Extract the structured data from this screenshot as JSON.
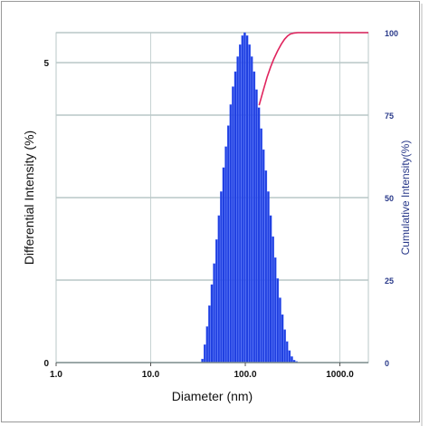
{
  "chart_data": {
    "type": "bar",
    "xlabel": "Diameter (nm)",
    "ylabel": "Differential Intensity (%)",
    "y2label": "Cumulative Intensity(%)",
    "x_scale": "log",
    "xlim": [
      1,
      2000
    ],
    "ylim": [
      0,
      5.5
    ],
    "y2lim": [
      0,
      100
    ],
    "x_tick_labels": [
      "1.0",
      "10.0",
      "100.0",
      "1000.0"
    ],
    "x_tick_values": [
      1,
      10,
      100,
      1000
    ],
    "y_tick_labels": [
      "0",
      "5"
    ],
    "y_tick_values": [
      0,
      5
    ],
    "y2_tick_labels": [
      "0",
      "25",
      "50",
      "75",
      "100"
    ],
    "y2_tick_values": [
      0,
      25,
      50,
      75,
      100
    ],
    "grid": true,
    "series": [
      {
        "kind": "bar",
        "axis": "left",
        "color": "#1f3fe0",
        "x": [
          35.3,
          37.4,
          39.6,
          41.9,
          44.4,
          47.0,
          49.8,
          52.7,
          55.8,
          59.1,
          62.6,
          66.3,
          70.2,
          74.4,
          78.8,
          83.4,
          88.3,
          93.5,
          99.0,
          104.9,
          111.1,
          117.6,
          124.6,
          131.9,
          139.7,
          147.9,
          156.6,
          165.9,
          175.7,
          186.0,
          197.0,
          208.6,
          220.9,
          233.9,
          247.7,
          262.3,
          277.8,
          294.2,
          311.5,
          329.9,
          349.3
        ],
        "values": [
          0.06,
          0.3,
          0.6,
          0.95,
          1.3,
          1.65,
          2.05,
          2.45,
          2.85,
          3.25,
          3.6,
          3.95,
          4.3,
          4.6,
          4.85,
          5.1,
          5.3,
          5.45,
          5.5,
          5.45,
          5.3,
          5.1,
          4.85,
          4.55,
          4.25,
          3.9,
          3.55,
          3.2,
          2.85,
          2.45,
          2.1,
          1.75,
          1.4,
          1.08,
          0.8,
          0.55,
          0.35,
          0.2,
          0.1,
          0.04,
          0.02
        ]
      },
      {
        "kind": "line",
        "axis": "right",
        "color": "#e0245e",
        "x": [
          140,
          155,
          170,
          185,
          200,
          220,
          240,
          260,
          280,
          300,
          330,
          360,
          2000
        ],
        "values": [
          78,
          82.5,
          86.5,
          89.5,
          92,
          94.5,
          96.5,
          98,
          99,
          99.6,
          99.9,
          100,
          100
        ]
      }
    ]
  }
}
